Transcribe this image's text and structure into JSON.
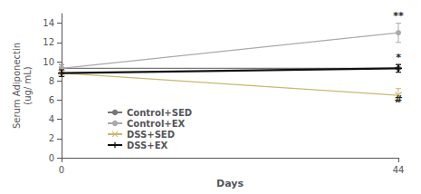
{
  "chart_data": {
    "type": "line",
    "xlabel": "Days",
    "ylabel": "Serum Adiponectin\n(ug/ mL)",
    "x": [
      0,
      44
    ],
    "series": [
      {
        "name": "Control+SED",
        "color": "#777777",
        "marker": "circle",
        "values": [
          9.3,
          9.3
        ],
        "yerr": [
          0.4,
          0.4
        ]
      },
      {
        "name": "Control+EX",
        "color": "#aaaaaa",
        "marker": "circle",
        "values": [
          9.3,
          13.0
        ],
        "yerr": [
          0.4,
          1.0
        ]
      },
      {
        "name": "DSS+SED",
        "color": "#c8b870",
        "marker": "x",
        "values": [
          8.8,
          6.5
        ],
        "yerr": [
          0.35,
          0.7
        ]
      },
      {
        "name": "DSS+EX",
        "color": "#111111",
        "marker": "plus",
        "values": [
          8.8,
          9.3
        ],
        "yerr": [
          0.35,
          0.4
        ]
      }
    ],
    "annotations": [
      {
        "text": "**",
        "x": 44,
        "y": 14.2
      },
      {
        "text": "*",
        "x": 44,
        "y": 9.95
      },
      {
        "text": "#",
        "x": 44,
        "y": 5.55
      }
    ],
    "xlim": [
      0,
      44
    ],
    "xticks": [
      0,
      44
    ],
    "ylim": [
      0,
      15
    ],
    "yticks": [
      0,
      2,
      4,
      6,
      8,
      10,
      12,
      14
    ],
    "grid": false,
    "legend": "lower left"
  }
}
